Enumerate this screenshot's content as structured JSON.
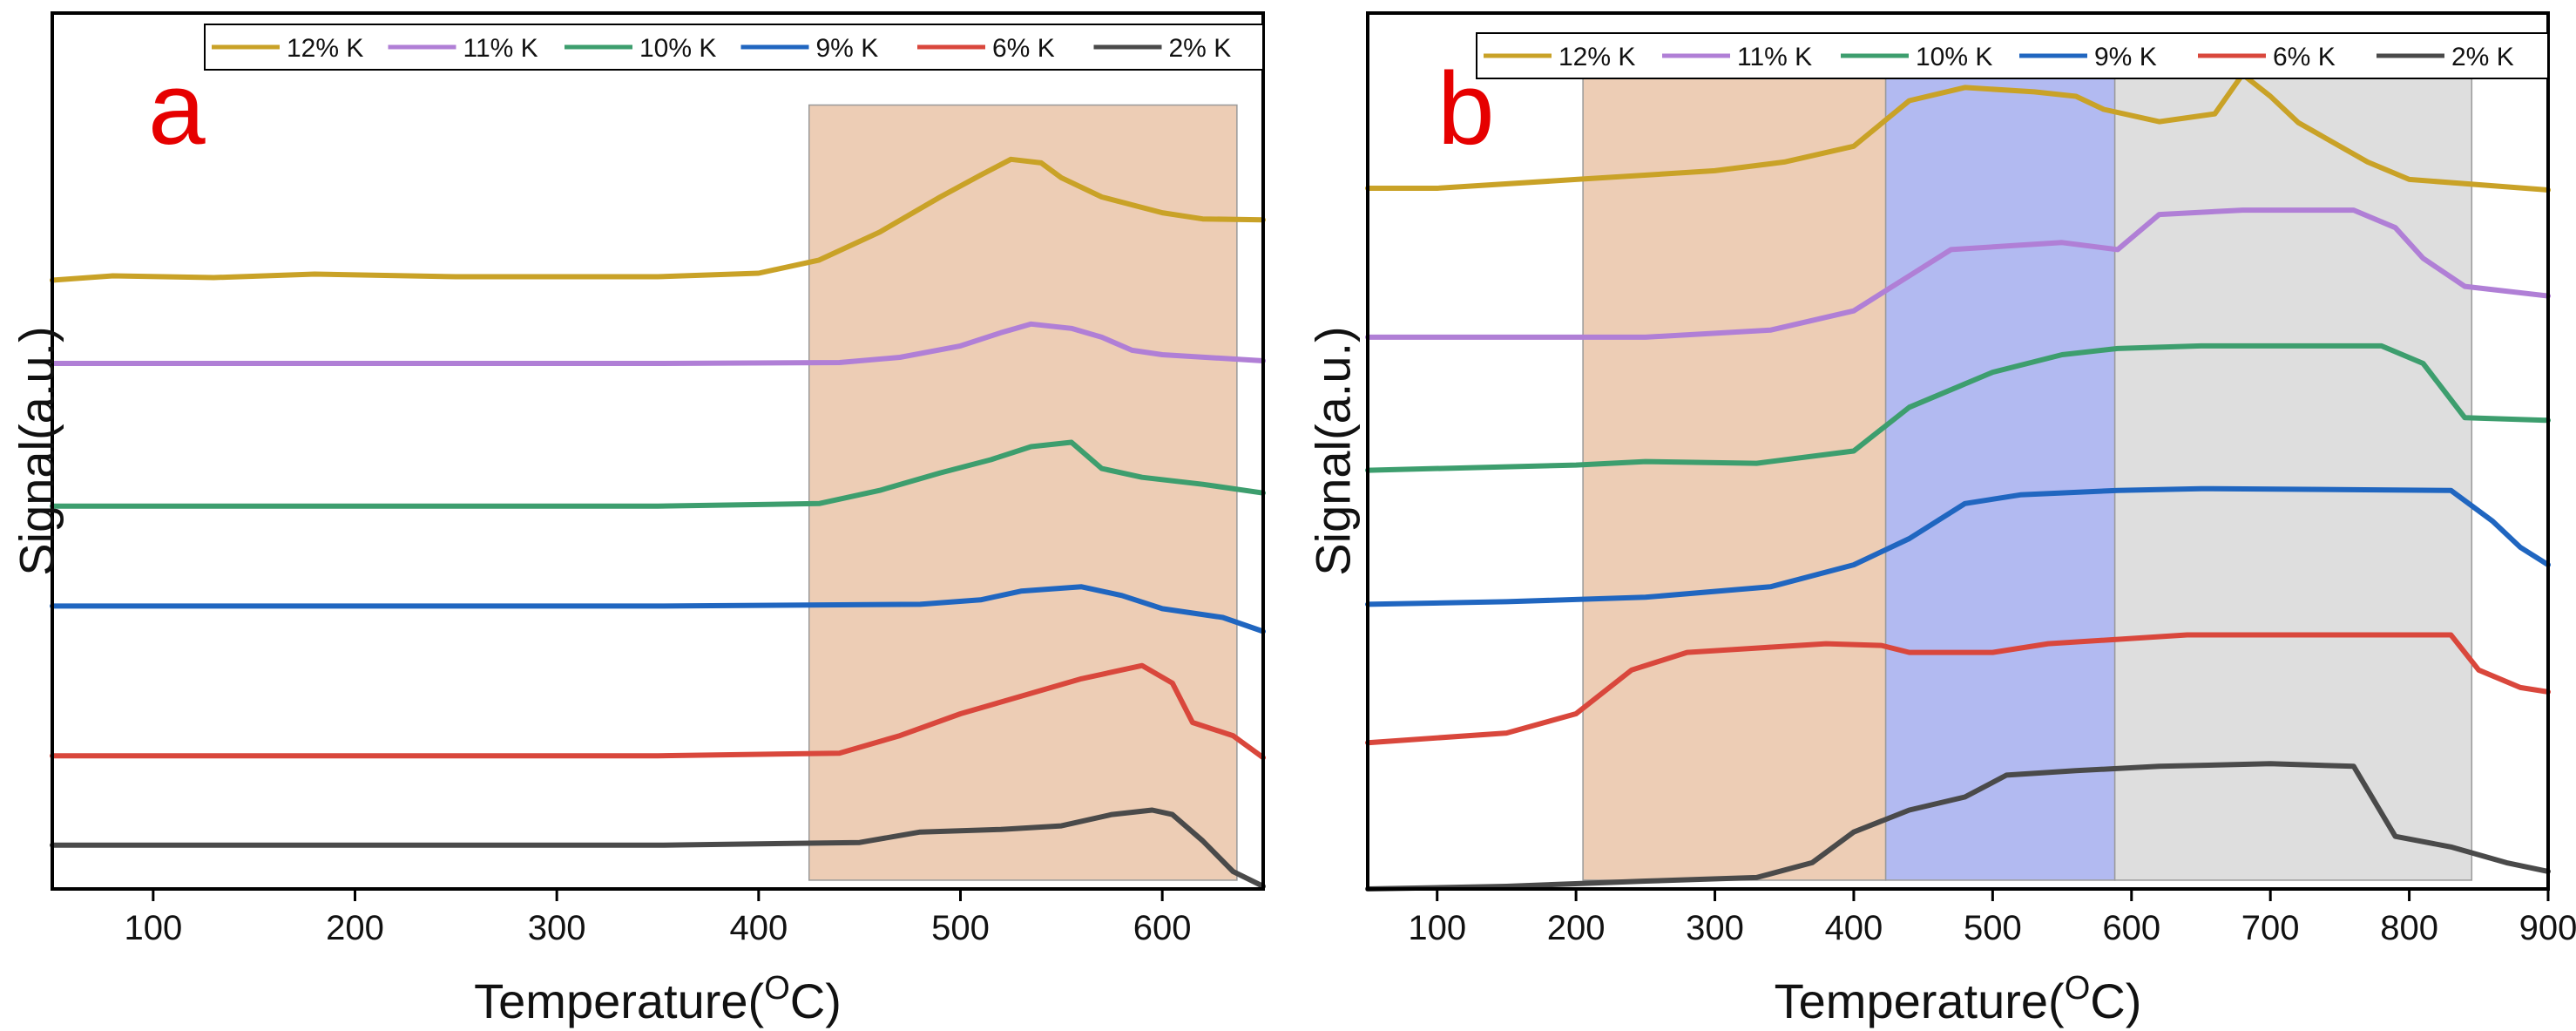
{
  "chart_data": [
    {
      "type": "line",
      "panel_label": "a",
      "xlabel": "Temperature(",
      "xlabel_sup": "O",
      "xlabel_suffix": "C)",
      "ylabel": "Signal(a.u.)",
      "xlim": [
        50,
        650
      ],
      "ylim": [
        0,
        1
      ],
      "xticks": [
        100,
        200,
        300,
        400,
        500,
        600
      ],
      "y_ticks_labeled": false,
      "legend": {
        "location": "top",
        "entries": [
          "12% K",
          "11% K",
          "10% K",
          "9% K",
          "6% K",
          "2% K"
        ]
      },
      "regions": [
        {
          "x0": 425,
          "x1": 637,
          "y0": 0.01,
          "y1": 0.895,
          "color": "#ebc8ad",
          "opacity": 0.9
        }
      ],
      "series": [
        {
          "name": "12% K",
          "color": "#c9a227",
          "points": [
            [
              50,
              0.695
            ],
            [
              80,
              0.7
            ],
            [
              130,
              0.698
            ],
            [
              180,
              0.702
            ],
            [
              250,
              0.699
            ],
            [
              350,
              0.699
            ],
            [
              400,
              0.703
            ],
            [
              430,
              0.718
            ],
            [
              460,
              0.75
            ],
            [
              490,
              0.79
            ],
            [
              510,
              0.815
            ],
            [
              525,
              0.833
            ],
            [
              540,
              0.829
            ],
            [
              550,
              0.812
            ],
            [
              570,
              0.79
            ],
            [
              600,
              0.772
            ],
            [
              620,
              0.765
            ],
            [
              650,
              0.764
            ]
          ]
        },
        {
          "name": "11% K",
          "color": "#b07fd6",
          "points": [
            [
              50,
              0.6
            ],
            [
              200,
              0.6
            ],
            [
              350,
              0.6
            ],
            [
              440,
              0.601
            ],
            [
              470,
              0.607
            ],
            [
              500,
              0.62
            ],
            [
              520,
              0.635
            ],
            [
              535,
              0.645
            ],
            [
              555,
              0.64
            ],
            [
              570,
              0.63
            ],
            [
              585,
              0.615
            ],
            [
              600,
              0.61
            ],
            [
              650,
              0.603
            ]
          ]
        },
        {
          "name": "10% K",
          "color": "#3d9e6e",
          "points": [
            [
              50,
              0.437
            ],
            [
              200,
              0.437
            ],
            [
              350,
              0.437
            ],
            [
              430,
              0.44
            ],
            [
              460,
              0.455
            ],
            [
              490,
              0.475
            ],
            [
              515,
              0.49
            ],
            [
              535,
              0.505
            ],
            [
              555,
              0.51
            ],
            [
              570,
              0.48
            ],
            [
              590,
              0.47
            ],
            [
              620,
              0.462
            ],
            [
              650,
              0.452
            ]
          ]
        },
        {
          "name": "9% K",
          "color": "#2066c0",
          "points": [
            [
              50,
              0.323
            ],
            [
              200,
              0.323
            ],
            [
              350,
              0.323
            ],
            [
              480,
              0.325
            ],
            [
              510,
              0.33
            ],
            [
              530,
              0.34
            ],
            [
              560,
              0.345
            ],
            [
              580,
              0.335
            ],
            [
              600,
              0.32
            ],
            [
              630,
              0.31
            ],
            [
              650,
              0.294
            ]
          ]
        },
        {
          "name": "6% K",
          "color": "#d9473c",
          "points": [
            [
              50,
              0.152
            ],
            [
              200,
              0.152
            ],
            [
              350,
              0.152
            ],
            [
              440,
              0.155
            ],
            [
              470,
              0.175
            ],
            [
              500,
              0.2
            ],
            [
              530,
              0.22
            ],
            [
              560,
              0.24
            ],
            [
              590,
              0.255
            ],
            [
              605,
              0.235
            ],
            [
              615,
              0.19
            ],
            [
              635,
              0.175
            ],
            [
              650,
              0.15
            ]
          ]
        },
        {
          "name": "2% K",
          "color": "#4a4a4a",
          "points": [
            [
              50,
              0.05
            ],
            [
              200,
              0.05
            ],
            [
              350,
              0.05
            ],
            [
              450,
              0.053
            ],
            [
              480,
              0.065
            ],
            [
              520,
              0.068
            ],
            [
              550,
              0.072
            ],
            [
              575,
              0.085
            ],
            [
              595,
              0.09
            ],
            [
              605,
              0.085
            ],
            [
              620,
              0.055
            ],
            [
              635,
              0.02
            ],
            [
              650,
              0.003
            ]
          ]
        }
      ]
    },
    {
      "type": "line",
      "panel_label": "b",
      "xlabel": "Temperature(",
      "xlabel_sup": "O",
      "xlabel_suffix": "C)",
      "ylabel": "Signal(a.u.)",
      "xlim": [
        50,
        900
      ],
      "ylim": [
        0,
        1
      ],
      "xticks": [
        100,
        200,
        300,
        400,
        500,
        600,
        700,
        800,
        900
      ],
      "y_ticks_labeled": false,
      "legend": {
        "location": "top",
        "entries": [
          "12% K",
          "11% K",
          "10% K",
          "9% K",
          "6% K",
          "2% K"
        ]
      },
      "regions": [
        {
          "x0": 205,
          "x1": 423,
          "y0": 0.01,
          "y1": 0.935,
          "color": "#ebc8ad",
          "opacity": 0.9
        },
        {
          "x0": 423,
          "x1": 588,
          "y0": 0.01,
          "y1": 0.935,
          "color": "#aab2ef",
          "opacity": 0.9
        },
        {
          "x0": 588,
          "x1": 845,
          "y0": 0.01,
          "y1": 0.935,
          "color": "#dadada",
          "opacity": 0.9
        }
      ],
      "series": [
        {
          "name": "12% K",
          "color": "#c9a227",
          "points": [
            [
              50,
              0.8
            ],
            [
              100,
              0.8
            ],
            [
              200,
              0.81
            ],
            [
              300,
              0.82
            ],
            [
              350,
              0.83
            ],
            [
              400,
              0.848
            ],
            [
              440,
              0.9
            ],
            [
              480,
              0.915
            ],
            [
              530,
              0.91
            ],
            [
              560,
              0.905
            ],
            [
              580,
              0.89
            ],
            [
              620,
              0.876
            ],
            [
              660,
              0.885
            ],
            [
              680,
              0.93
            ],
            [
              700,
              0.905
            ],
            [
              720,
              0.875
            ],
            [
              770,
              0.83
            ],
            [
              800,
              0.81
            ],
            [
              900,
              0.798
            ]
          ]
        },
        {
          "name": "11% K",
          "color": "#b07fd6",
          "points": [
            [
              50,
              0.63
            ],
            [
              150,
              0.63
            ],
            [
              250,
              0.63
            ],
            [
              340,
              0.638
            ],
            [
              400,
              0.66
            ],
            [
              440,
              0.7
            ],
            [
              470,
              0.73
            ],
            [
              520,
              0.735
            ],
            [
              550,
              0.738
            ],
            [
              590,
              0.73
            ],
            [
              620,
              0.77
            ],
            [
              680,
              0.775
            ],
            [
              760,
              0.775
            ],
            [
              790,
              0.755
            ],
            [
              810,
              0.72
            ],
            [
              840,
              0.688
            ],
            [
              900,
              0.677
            ]
          ]
        },
        {
          "name": "10% K",
          "color": "#3d9e6e",
          "points": [
            [
              50,
              0.478
            ],
            [
              200,
              0.484
            ],
            [
              250,
              0.488
            ],
            [
              330,
              0.486
            ],
            [
              400,
              0.5
            ],
            [
              440,
              0.55
            ],
            [
              500,
              0.59
            ],
            [
              550,
              0.61
            ],
            [
              590,
              0.617
            ],
            [
              650,
              0.62
            ],
            [
              780,
              0.62
            ],
            [
              810,
              0.6
            ],
            [
              840,
              0.538
            ],
            [
              900,
              0.535
            ]
          ]
        },
        {
          "name": "9% K",
          "color": "#2066c0",
          "points": [
            [
              50,
              0.325
            ],
            [
              150,
              0.328
            ],
            [
              250,
              0.333
            ],
            [
              340,
              0.345
            ],
            [
              400,
              0.37
            ],
            [
              440,
              0.4
            ],
            [
              480,
              0.44
            ],
            [
              520,
              0.45
            ],
            [
              590,
              0.455
            ],
            [
              650,
              0.457
            ],
            [
              830,
              0.455
            ],
            [
              860,
              0.42
            ],
            [
              880,
              0.39
            ],
            [
              900,
              0.37
            ]
          ]
        },
        {
          "name": "6% K",
          "color": "#d9473c",
          "points": [
            [
              50,
              0.167
            ],
            [
              150,
              0.178
            ],
            [
              200,
              0.2
            ],
            [
              240,
              0.25
            ],
            [
              280,
              0.27
            ],
            [
              330,
              0.275
            ],
            [
              380,
              0.28
            ],
            [
              420,
              0.278
            ],
            [
              440,
              0.27
            ],
            [
              500,
              0.27
            ],
            [
              540,
              0.28
            ],
            [
              590,
              0.285
            ],
            [
              640,
              0.29
            ],
            [
              830,
              0.29
            ],
            [
              850,
              0.25
            ],
            [
              880,
              0.23
            ],
            [
              900,
              0.225
            ]
          ]
        },
        {
          "name": "2% K",
          "color": "#4a4a4a",
          "points": [
            [
              50,
              0.0
            ],
            [
              150,
              0.003
            ],
            [
              250,
              0.009
            ],
            [
              330,
              0.013
            ],
            [
              370,
              0.03
            ],
            [
              400,
              0.065
            ],
            [
              440,
              0.09
            ],
            [
              480,
              0.105
            ],
            [
              510,
              0.13
            ],
            [
              560,
              0.135
            ],
            [
              620,
              0.14
            ],
            [
              700,
              0.143
            ],
            [
              760,
              0.14
            ],
            [
              790,
              0.06
            ],
            [
              830,
              0.048
            ],
            [
              870,
              0.03
            ],
            [
              900,
              0.02
            ]
          ]
        }
      ]
    }
  ]
}
